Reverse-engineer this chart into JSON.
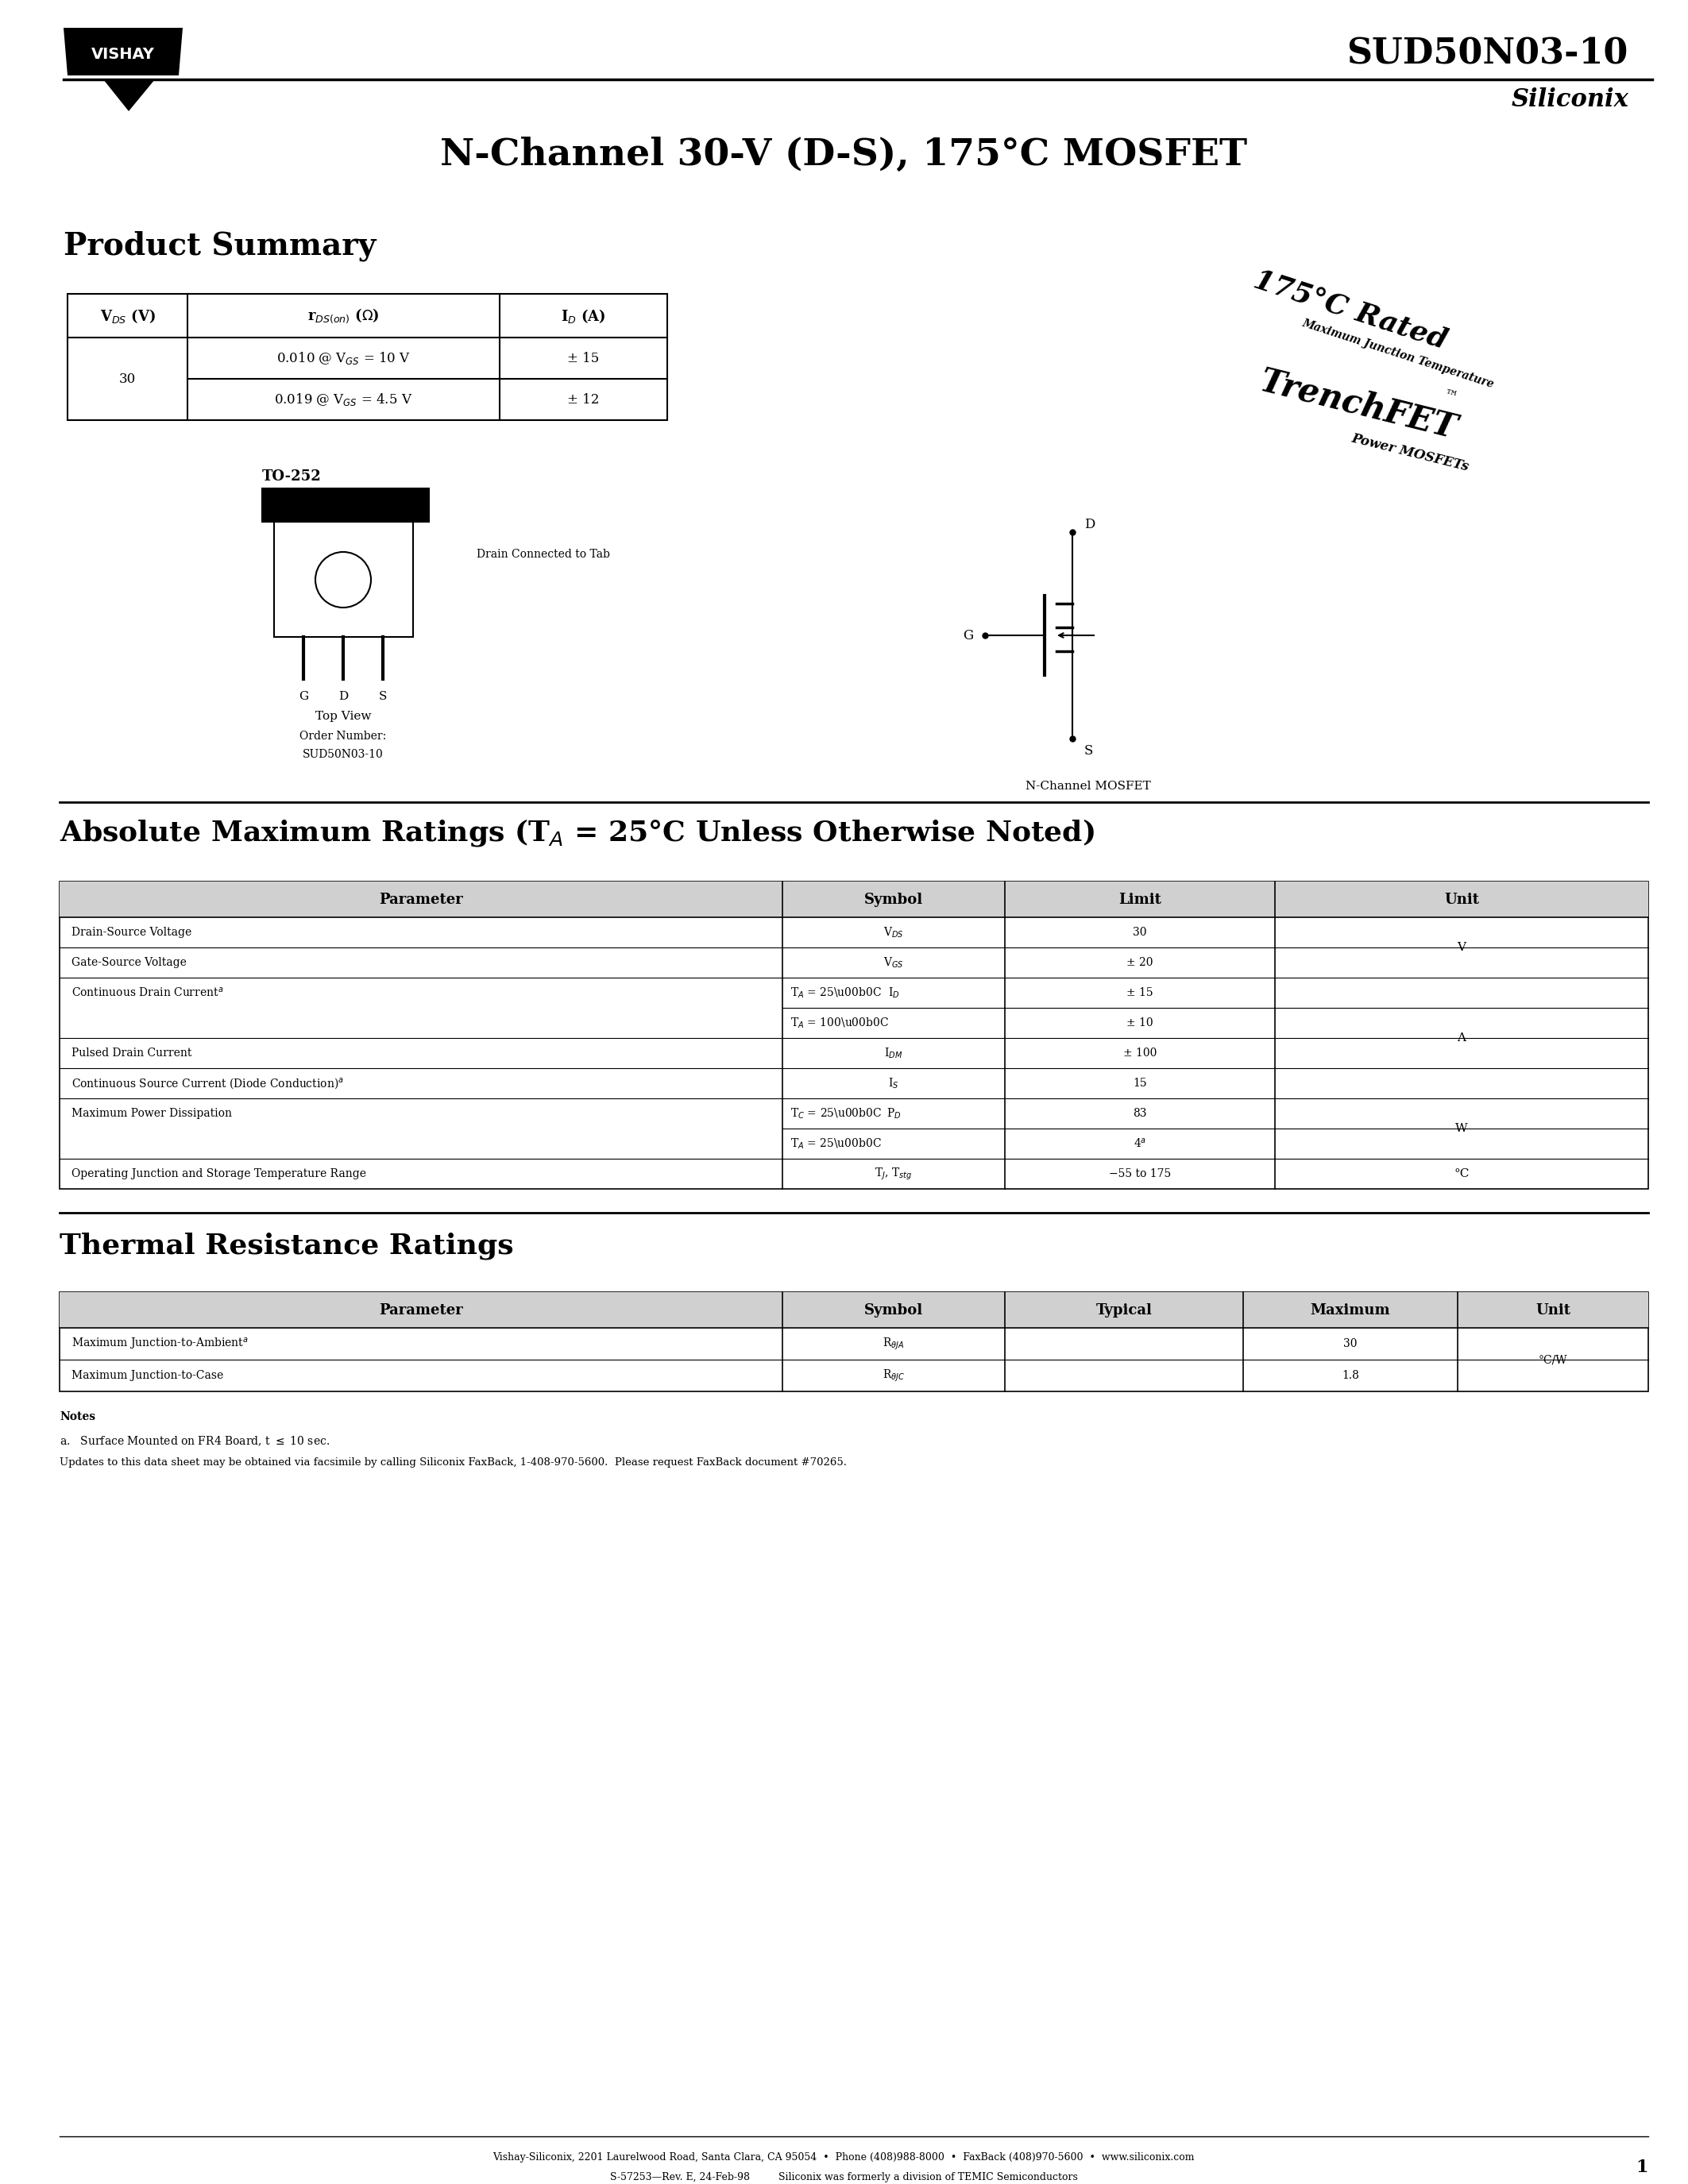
{
  "title_part": "SUD50N03-10",
  "title_brand": "Siliconix",
  "main_title": "N-Channel 30-V (D-S), 175°C MOSFET",
  "bg_color": "#ffffff",
  "page_number": "1",
  "sections": {
    "product_summary": "Product Summary",
    "abs_max": "Absolute Maximum Ratings (T",
    "thermal": "Thermal Resistance Ratings"
  }
}
